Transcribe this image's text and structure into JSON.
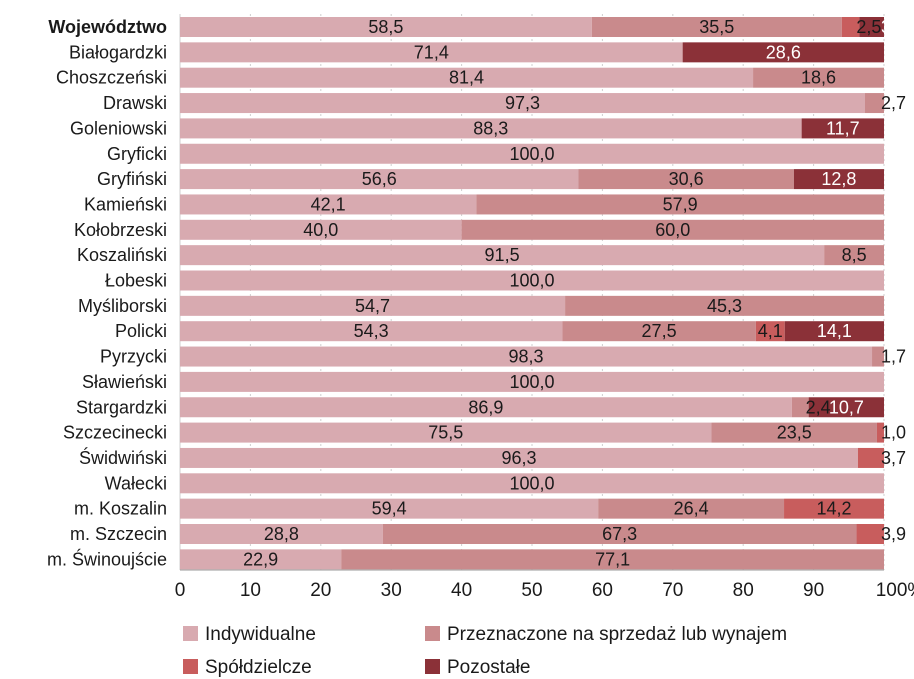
{
  "chart_data": {
    "type": "bar",
    "orientation": "horizontal",
    "stacked": "percent",
    "categories": [
      "Województwo",
      "Białogardzki",
      "Choszczeński",
      "Drawski",
      "Goleniowski",
      "Gryficki",
      "Gryfiński",
      "Kamieński",
      "Kołobrzeski",
      "Koszaliński",
      "Łobeski",
      "Myśliborski",
      "Policki",
      "Pyrzycki",
      "Sławieński",
      "Stargardzki",
      "Szczecinecki",
      "Świdwiński",
      "Wałecki",
      "m. Koszalin",
      "m. Szczecin",
      "m. Świnoujście"
    ],
    "series": [
      {
        "name": "Indywidualne",
        "color": "#d8aab0",
        "values": [
          58.5,
          71.4,
          81.4,
          97.3,
          88.3,
          100.0,
          56.6,
          42.1,
          40.0,
          91.5,
          100.0,
          54.7,
          54.3,
          98.3,
          100.0,
          86.9,
          75.5,
          96.3,
          100.0,
          59.4,
          28.8,
          22.9
        ]
      },
      {
        "name": "Przeznaczone na sprzedaż lub wynajem",
        "color": "#c98a8c",
        "values": [
          35.5,
          0,
          18.6,
          2.7,
          0,
          0,
          30.6,
          57.9,
          60.0,
          8.5,
          0,
          45.3,
          27.5,
          1.7,
          0,
          2.4,
          23.5,
          0,
          0,
          26.4,
          67.3,
          77.1
        ]
      },
      {
        "name": "Spółdzielcze",
        "color": "#c85d5d",
        "values": [
          2.5,
          0,
          0,
          0,
          0,
          0,
          0,
          0,
          0,
          0,
          0,
          0,
          4.1,
          0,
          0,
          0,
          1.0,
          3.7,
          0,
          14.2,
          3.9,
          0
        ]
      },
      {
        "name": "Pozostałe",
        "color": "#8b3138",
        "values": [
          3.5,
          28.6,
          0,
          0,
          11.7,
          0,
          12.8,
          0,
          0,
          0,
          0,
          0,
          14.1,
          0,
          0,
          10.7,
          0,
          0,
          0,
          0,
          0,
          0
        ]
      }
    ],
    "xlim": [
      0,
      100
    ],
    "xticks": [
      "0",
      "10",
      "20",
      "30",
      "40",
      "50",
      "60",
      "70",
      "80",
      "90",
      "100%"
    ],
    "grid": true,
    "legend_position": "bottom"
  }
}
